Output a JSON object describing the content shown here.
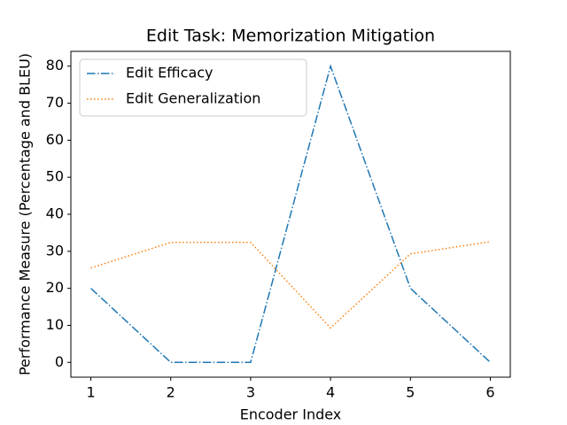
{
  "chart_data": {
    "type": "line",
    "title": "Edit Task: Memorization Mitigation",
    "x_label": "Encoder Index",
    "y_label": "Performance Measure (Percentage and BLEU)",
    "x": [
      1,
      2,
      3,
      4,
      5,
      6
    ],
    "series": [
      {
        "name": "Edit Efficacy",
        "color": "#1f77b4",
        "dash": "dashdot",
        "values": [
          20,
          0,
          0,
          80,
          20,
          0
        ]
      },
      {
        "name": "Edit Generalization",
        "color": "#ff7f0e",
        "dash": "dotted",
        "values": [
          25.5,
          32.4,
          32.4,
          9.3,
          29.3,
          32.6
        ]
      }
    ],
    "xlim": [
      0.75,
      6.25
    ],
    "xticks": [
      1,
      2,
      3,
      4,
      5,
      6
    ],
    "ylim": [
      -4,
      84
    ],
    "yticks": [
      0,
      10,
      20,
      30,
      40,
      50,
      60,
      70,
      80
    ],
    "legend": "upper left"
  }
}
